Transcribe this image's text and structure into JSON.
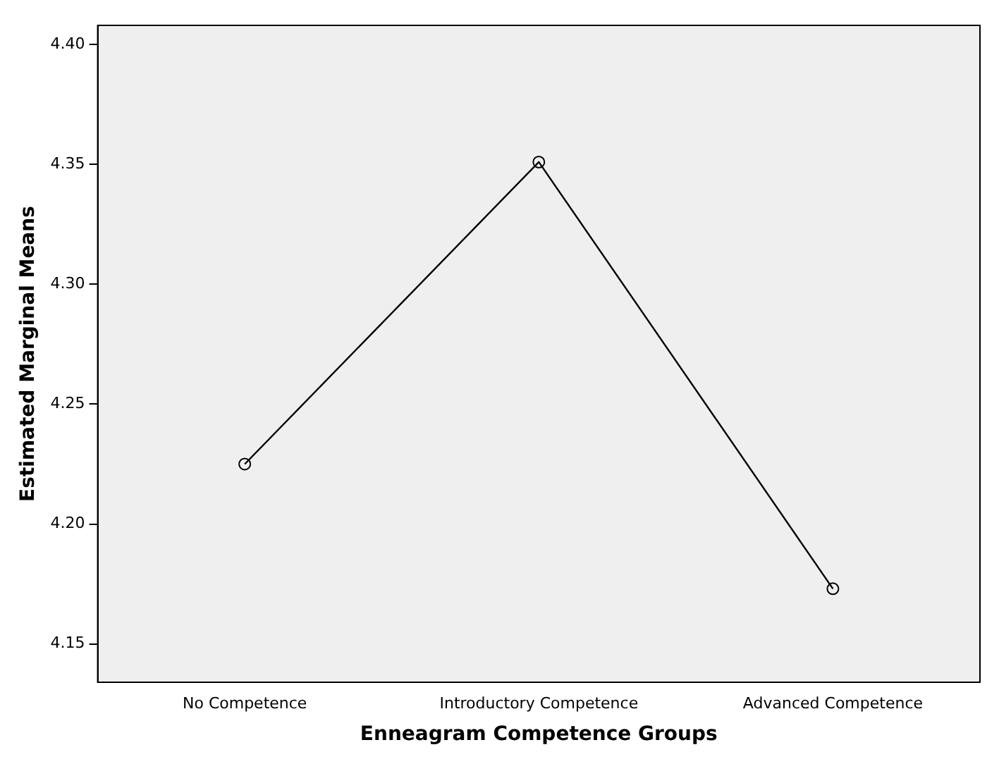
{
  "chart_data": {
    "type": "line",
    "xlabel": "Enneagram Competence Groups",
    "ylabel": "Estimated Marginal Means",
    "categories": [
      "No Competence",
      "Introductory Competence",
      "Advanced Competence"
    ],
    "series": [
      {
        "color": "#000000",
        "values": [
          4.225,
          4.351,
          4.173
        ]
      }
    ],
    "ylim": [
      4.134,
      4.408
    ],
    "yticks": [
      4.15,
      {
        "value": 4.2,
        "label": "4.20"
      },
      4.25,
      {
        "value": 4.3,
        "label": "4.30"
      },
      4.35,
      {
        "value": 4.4,
        "label": "4.40"
      }
    ],
    "grid": false,
    "legend": false,
    "marker": "circle",
    "line_style": "solid"
  }
}
